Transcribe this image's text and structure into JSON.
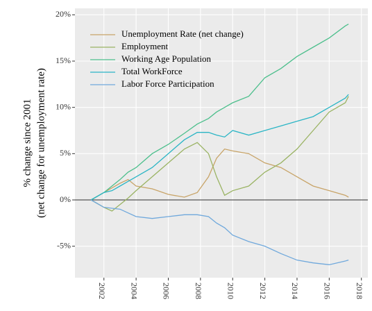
{
  "chart_data": {
    "type": "line",
    "ylabel": [
      "% change since 2001",
      "(net change for unemployment rate)"
    ],
    "x": [
      2001.2,
      2002,
      2002.5,
      2003,
      2003.5,
      2004,
      2005,
      2006,
      2007,
      2007.8,
      2008.5,
      2009,
      2009.5,
      2010,
      2011,
      2012,
      2013,
      2014,
      2015,
      2016,
      2017,
      2017.2
    ],
    "series": [
      {
        "name": "Unemployment Rate (net change)",
        "color": "#c8a468",
        "values": [
          0,
          0.8,
          1.3,
          1.8,
          2.2,
          1.5,
          1.2,
          0.6,
          0.3,
          0.8,
          2.5,
          4.5,
          5.5,
          5.3,
          5.0,
          4.0,
          3.5,
          2.5,
          1.5,
          1.0,
          0.5,
          0.3
        ]
      },
      {
        "name": "Employment",
        "color": "#9ab363",
        "values": [
          0,
          -0.8,
          -1.2,
          -0.5,
          0.2,
          1,
          2.5,
          4,
          5.5,
          6.2,
          5,
          2.5,
          0.5,
          1,
          1.5,
          3,
          4,
          5.5,
          7.5,
          9.5,
          10.5,
          11.2
        ]
      },
      {
        "name": "Working Age Population",
        "color": "#4cbf8c",
        "values": [
          0,
          0.8,
          1.5,
          2.2,
          3,
          3.5,
          5,
          6,
          7.2,
          8.2,
          8.8,
          9.5,
          10,
          10.5,
          11.2,
          13.2,
          14.2,
          15.5,
          16.5,
          17.5,
          18.8,
          19
        ]
      },
      {
        "name": "Total WorkForce",
        "color": "#2ab5c5",
        "values": [
          0,
          0.8,
          1.0,
          1.5,
          2,
          2.5,
          3.5,
          5,
          6.5,
          7.3,
          7.3,
          7.0,
          6.8,
          7.5,
          7,
          7.5,
          8,
          8.5,
          9,
          10,
          11,
          11.4
        ]
      },
      {
        "name": "Labor Force Participation",
        "color": "#6fa8dc",
        "values": [
          0,
          -0.8,
          -0.9,
          -1,
          -1.4,
          -1.8,
          -2,
          -1.8,
          -1.6,
          -1.6,
          -1.8,
          -2.5,
          -3,
          -3.8,
          -4.5,
          -5,
          -5.8,
          -6.5,
          -6.8,
          -7.0,
          -6.6,
          -6.5
        ]
      }
    ],
    "xlim": [
      2000.2,
      2018.4
    ],
    "xticks": [
      2002,
      2004,
      2006,
      2008,
      2010,
      2012,
      2014,
      2016,
      2018
    ],
    "ylim": [
      -8.4,
      20.7
    ],
    "yticks": [
      {
        "value": -5,
        "label": "-5%"
      },
      {
        "value": 0,
        "label": "0%"
      },
      {
        "value": 5,
        "label": "5%"
      },
      {
        "value": 10,
        "label": "10%"
      },
      {
        "value": 15,
        "label": "15%"
      },
      {
        "value": 20,
        "label": "20%"
      }
    ],
    "hline": 0,
    "grid": true,
    "legend": "top-left"
  }
}
